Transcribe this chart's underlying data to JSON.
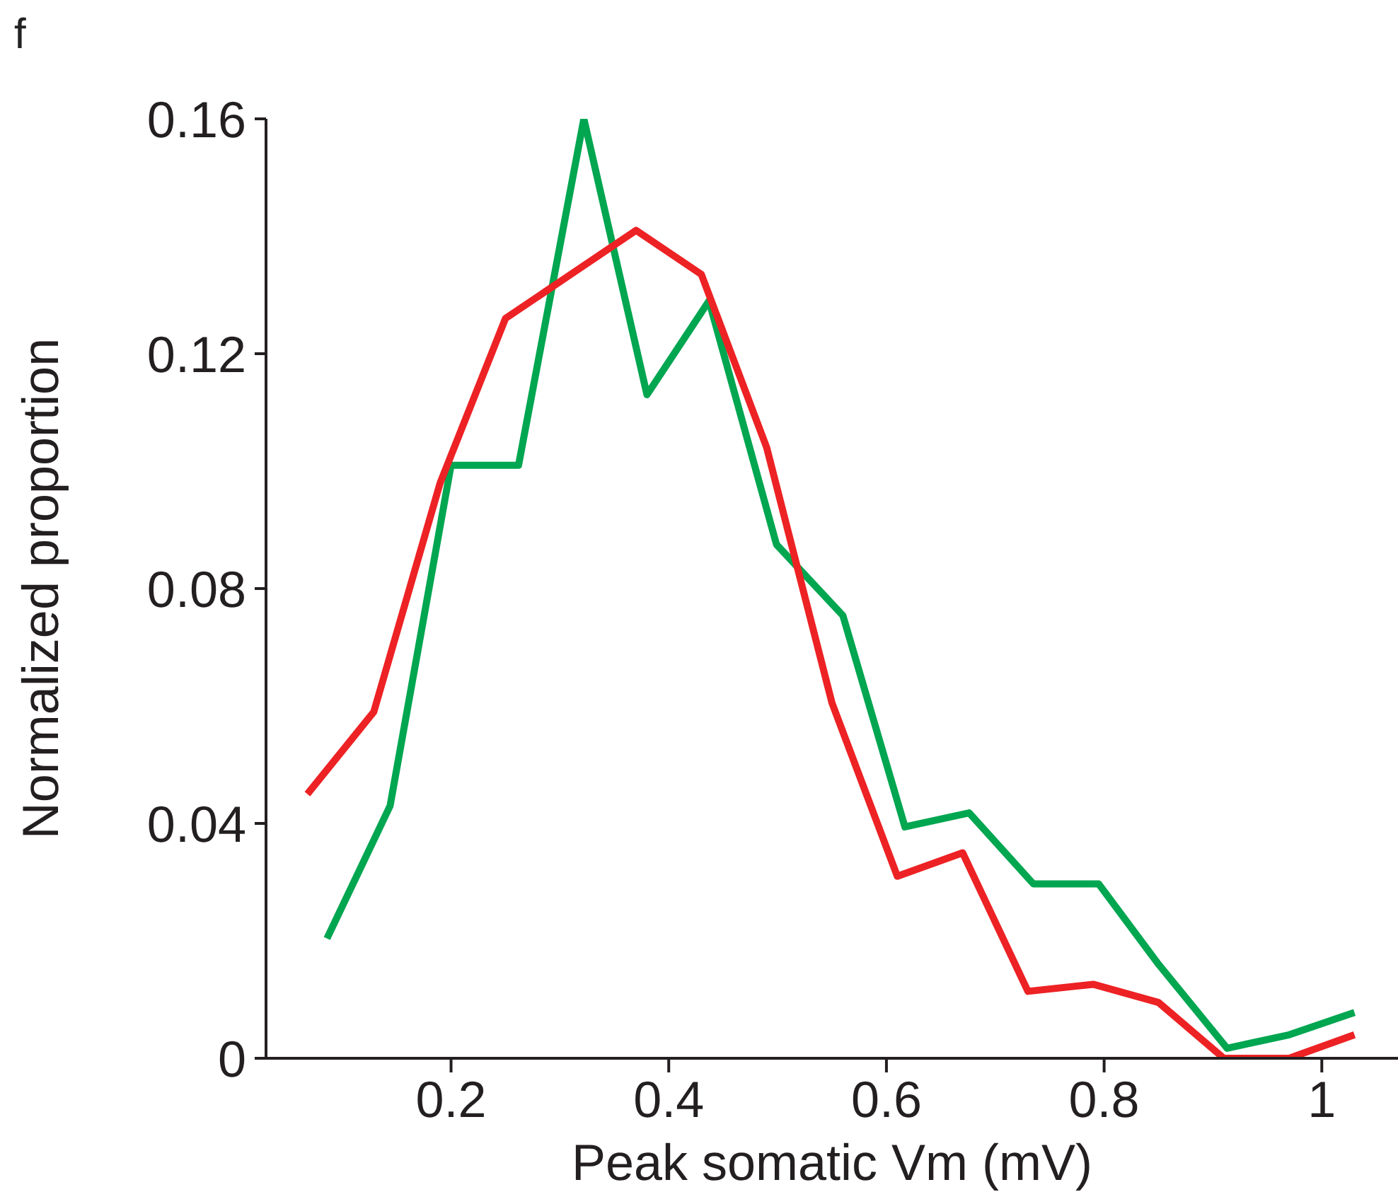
{
  "chart_data": {
    "type": "line",
    "xlabel": "Peak somatic Vm (mV)",
    "ylabel": "Normalized proportion",
    "annotations": [
      "f"
    ],
    "xlim": [
      0.03,
      1.07
    ],
    "xticks": [
      0.2,
      0.4,
      0.6,
      0.8,
      1
    ],
    "ylim": [
      0,
      0.16
    ],
    "yticks": [
      0,
      0.04,
      0.08,
      0.12,
      0.16
    ],
    "grid": false,
    "legend": false,
    "marker": "none",
    "line_style": "solid",
    "series": [
      {
        "color": "#00a650",
        "x": [
          0.086,
          0.144,
          0.2,
          0.262,
          0.322,
          0.38,
          0.437,
          0.499,
          0.56,
          0.617,
          0.676,
          0.735,
          0.795,
          0.85,
          0.913,
          0.97,
          1.03
        ],
        "values": [
          0.0204,
          0.043,
          0.101,
          0.101,
          0.16,
          0.113,
          0.129,
          0.0875,
          0.0754,
          0.0394,
          0.0418,
          0.0297,
          0.0297,
          0.016,
          0.0017,
          0.004,
          0.0078
        ]
      },
      {
        "color": "#ed2224",
        "x": [
          0.068,
          0.129,
          0.19,
          0.25,
          0.31,
          0.37,
          0.43,
          0.49,
          0.55,
          0.61,
          0.67,
          0.73,
          0.79,
          0.85,
          0.91,
          0.97,
          1.03
        ],
        "values": [
          0.045,
          0.059,
          0.098,
          0.126,
          0.1335,
          0.141,
          0.1335,
          0.104,
          0.0605,
          0.031,
          0.035,
          0.0114,
          0.0126,
          0.0095,
          0,
          0,
          0.004
        ]
      }
    ]
  }
}
